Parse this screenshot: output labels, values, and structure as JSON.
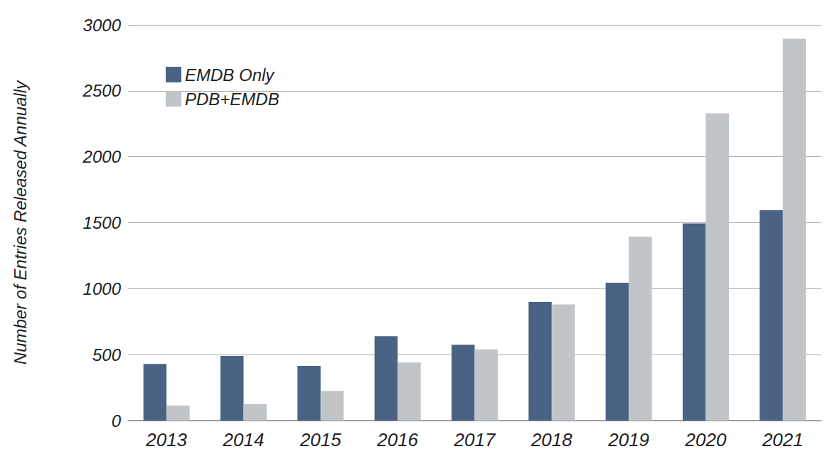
{
  "chart_data": {
    "type": "bar",
    "y_label": "Number of Entries Released Annually",
    "categories": [
      "2013",
      "2014",
      "2015",
      "2016",
      "2017",
      "2018",
      "2019",
      "2020",
      "2021"
    ],
    "series": [
      {
        "name": "EMDB Only",
        "color": "#4a6283",
        "values": [
          430,
          490,
          415,
          640,
          575,
          900,
          1045,
          1495,
          1595
        ]
      },
      {
        "name": "PDB+EMDB",
        "color": "#c2c5c8",
        "values": [
          115,
          125,
          225,
          440,
          540,
          880,
          1395,
          2330,
          2895
        ]
      }
    ],
    "ylim": [
      0,
      3000
    ],
    "yticks": [
      0,
      500,
      1000,
      1500,
      2000,
      2500,
      3000
    ],
    "grid": true,
    "legend": "top-left"
  }
}
